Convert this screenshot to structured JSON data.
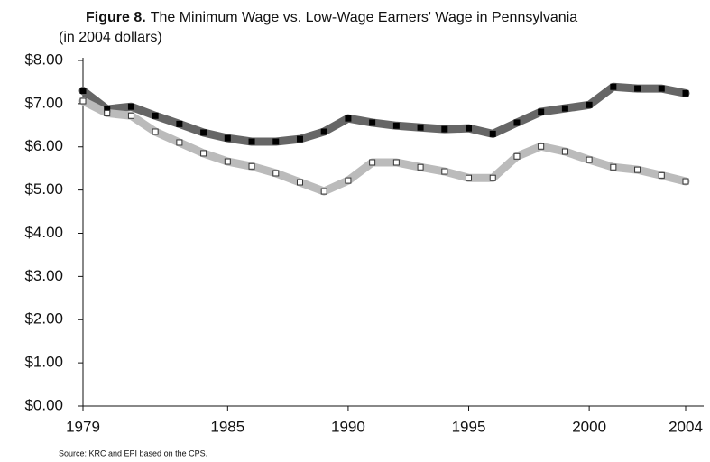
{
  "chart_data": {
    "type": "line",
    "title_label": "Figure 8.",
    "title": "The Minimum Wage vs. Low-Wage Earners' Wage in Pennsylvania",
    "subtitle": "(in 2004 dollars)",
    "source": "Source: KRC and EPI based on the CPS.",
    "x": [
      1979,
      1980,
      1981,
      1982,
      1983,
      1984,
      1985,
      1986,
      1987,
      1988,
      1989,
      1990,
      1991,
      1992,
      1993,
      1994,
      1995,
      1996,
      1997,
      1998,
      1999,
      2000,
      2001,
      2002,
      2003,
      2004
    ],
    "series": [
      {
        "color": "#666666",
        "marker_fill": "#000000",
        "marker_stroke": "#000000",
        "values": [
          7.3,
          6.87,
          6.93,
          6.72,
          6.53,
          6.33,
          6.2,
          6.12,
          6.12,
          6.18,
          6.35,
          6.66,
          6.56,
          6.49,
          6.45,
          6.41,
          6.43,
          6.3,
          6.56,
          6.81,
          6.89,
          6.97,
          7.39,
          7.35,
          7.35,
          7.24
        ]
      },
      {
        "color": "#bbbbbb",
        "marker_fill": "#ffffff",
        "marker_stroke": "#333333",
        "values": [
          7.06,
          6.78,
          6.72,
          6.35,
          6.1,
          5.85,
          5.66,
          5.55,
          5.39,
          5.18,
          4.97,
          5.22,
          5.64,
          5.64,
          5.53,
          5.43,
          5.28,
          5.28,
          5.78,
          6.01,
          5.89,
          5.7,
          5.53,
          5.47,
          5.34,
          5.2
        ]
      }
    ],
    "xlim": [
      1979,
      2004
    ],
    "xticks": [
      1979,
      1985,
      1990,
      1995,
      2000,
      2004
    ],
    "ylim": [
      0,
      8
    ],
    "yticks": [
      {
        "value": 0,
        "label": "$0.00"
      },
      {
        "value": 1,
        "label": "$1.00"
      },
      {
        "value": 2,
        "label": "$2.00"
      },
      {
        "value": 3,
        "label": "$3.00"
      },
      {
        "value": 4,
        "label": "$4.00"
      },
      {
        "value": 5,
        "label": "$5.00"
      },
      {
        "value": 6,
        "label": "$6.00"
      },
      {
        "value": 7,
        "label": "$7.00"
      },
      {
        "value": 8,
        "label": "$8.00"
      }
    ],
    "grid": false
  }
}
